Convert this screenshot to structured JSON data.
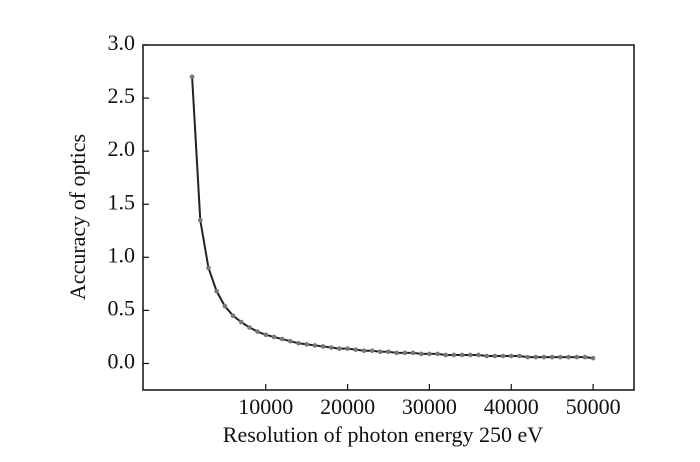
{
  "chart_data": {
    "type": "line",
    "x_label": "Resolution of photon energy 250 eV",
    "y_label": "Accuracy of optics",
    "x": [
      1000,
      2000,
      3000,
      4000,
      5000,
      6000,
      7000,
      8000,
      9000,
      10000,
      11000,
      12000,
      13000,
      14000,
      15000,
      16000,
      17000,
      18000,
      19000,
      20000,
      21000,
      22000,
      23000,
      24000,
      25000,
      26000,
      27000,
      28000,
      29000,
      30000,
      31000,
      32000,
      33000,
      34000,
      35000,
      36000,
      37000,
      38000,
      39000,
      40000,
      41000,
      42000,
      43000,
      44000,
      45000,
      46000,
      47000,
      48000,
      49000,
      50000
    ],
    "series": [
      {
        "color": "#222222",
        "marker_color": "#777777",
        "values": [
          2.7,
          1.35,
          0.9,
          0.68,
          0.54,
          0.45,
          0.39,
          0.34,
          0.3,
          0.27,
          0.25,
          0.23,
          0.21,
          0.19,
          0.18,
          0.17,
          0.16,
          0.15,
          0.14,
          0.14,
          0.13,
          0.12,
          0.12,
          0.11,
          0.11,
          0.1,
          0.1,
          0.1,
          0.09,
          0.09,
          0.09,
          0.08,
          0.08,
          0.08,
          0.08,
          0.08,
          0.07,
          0.07,
          0.07,
          0.07,
          0.07,
          0.06,
          0.06,
          0.06,
          0.06,
          0.06,
          0.06,
          0.06,
          0.06,
          0.05
        ]
      }
    ],
    "xlim": [
      -5000,
      55000
    ],
    "xticks": [
      10000,
      20000,
      30000,
      40000,
      50000
    ],
    "ylim": [
      -0.25,
      3.0
    ],
    "yticks": [
      {
        "value": 0,
        "label": "0.0"
      },
      0.5,
      {
        "value": 1,
        "label": "1.0"
      },
      1.5,
      {
        "value": 2,
        "label": "2.0"
      },
      2.5,
      {
        "value": 3,
        "label": "3.0"
      }
    ],
    "grid": false
  }
}
